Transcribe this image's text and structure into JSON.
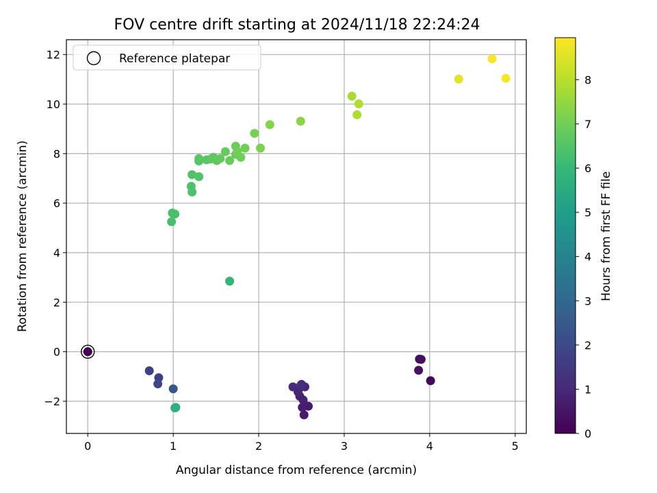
{
  "chart_data": {
    "type": "scatter",
    "title": "FOV centre drift starting at 2024/11/18 22:24:24",
    "xlabel": "Angular distance from reference (arcmin)",
    "ylabel": "Rotation from reference (arcmin)",
    "xlim": [
      -0.25,
      5.13
    ],
    "ylim": [
      -3.3,
      12.6
    ],
    "xticks": [
      0,
      1,
      2,
      3,
      4,
      5
    ],
    "yticks": [
      -2,
      0,
      2,
      4,
      6,
      8,
      10,
      12
    ],
    "grid": true,
    "legend": {
      "placement": "top-left",
      "entries": [
        "Reference platepar"
      ]
    },
    "reference_point": {
      "x": 0,
      "y": 0
    },
    "colorbar": {
      "label": "Hours from first FF file",
      "colormap": "viridis",
      "range": [
        0,
        8.95
      ],
      "ticks": [
        0,
        1,
        2,
        3,
        4,
        5,
        6,
        7,
        8
      ]
    },
    "series": [
      {
        "points": [
          {
            "x": 0.0,
            "y": 0.0,
            "c": 0.0
          },
          {
            "x": 4.01,
            "y": -1.17,
            "c": 0.15
          },
          {
            "x": 3.88,
            "y": -0.3,
            "c": 0.3
          },
          {
            "x": 3.9,
            "y": -0.31,
            "c": 0.35
          },
          {
            "x": 3.87,
            "y": -0.75,
            "c": 0.4
          },
          {
            "x": 2.53,
            "y": -2.55,
            "c": 0.6
          },
          {
            "x": 2.58,
            "y": -2.2,
            "c": 0.7
          },
          {
            "x": 2.51,
            "y": -2.25,
            "c": 0.75
          },
          {
            "x": 2.52,
            "y": -1.95,
            "c": 0.8
          },
          {
            "x": 2.48,
            "y": -1.8,
            "c": 0.85
          },
          {
            "x": 2.46,
            "y": -1.62,
            "c": 0.9
          },
          {
            "x": 2.47,
            "y": -1.5,
            "c": 0.95
          },
          {
            "x": 2.54,
            "y": -1.42,
            "c": 1.0
          },
          {
            "x": 2.5,
            "y": -1.32,
            "c": 1.05
          },
          {
            "x": 2.4,
            "y": -1.42,
            "c": 1.1
          },
          {
            "x": 2.49,
            "y": -1.37,
            "c": 1.2
          },
          {
            "x": 0.83,
            "y": -1.05,
            "c": 1.7
          },
          {
            "x": 0.72,
            "y": -0.77,
            "c": 1.75
          },
          {
            "x": 0.82,
            "y": -1.3,
            "c": 1.9
          },
          {
            "x": 1.0,
            "y": -1.5,
            "c": 2.4
          },
          {
            "x": 1.02,
            "y": -2.27,
            "c": 5.6
          },
          {
            "x": 1.03,
            "y": -2.25,
            "c": 5.7
          },
          {
            "x": 1.66,
            "y": 2.85,
            "c": 5.9
          },
          {
            "x": 0.98,
            "y": 5.25,
            "c": 6.3
          },
          {
            "x": 0.99,
            "y": 5.6,
            "c": 6.3
          },
          {
            "x": 1.02,
            "y": 5.56,
            "c": 6.35
          },
          {
            "x": 1.22,
            "y": 6.45,
            "c": 6.4
          },
          {
            "x": 1.21,
            "y": 6.68,
            "c": 6.4
          },
          {
            "x": 1.22,
            "y": 7.15,
            "c": 6.45
          },
          {
            "x": 1.3,
            "y": 7.07,
            "c": 6.5
          },
          {
            "x": 1.3,
            "y": 7.7,
            "c": 6.55
          },
          {
            "x": 1.3,
            "y": 7.8,
            "c": 6.6
          },
          {
            "x": 1.39,
            "y": 7.75,
            "c": 6.6
          },
          {
            "x": 1.44,
            "y": 7.78,
            "c": 6.65
          },
          {
            "x": 1.47,
            "y": 7.85,
            "c": 6.7
          },
          {
            "x": 1.51,
            "y": 7.72,
            "c": 6.7
          },
          {
            "x": 1.55,
            "y": 7.8,
            "c": 6.75
          },
          {
            "x": 1.61,
            "y": 8.08,
            "c": 6.8
          },
          {
            "x": 1.66,
            "y": 7.72,
            "c": 6.85
          },
          {
            "x": 1.73,
            "y": 8.3,
            "c": 6.9
          },
          {
            "x": 1.73,
            "y": 7.97,
            "c": 6.9
          },
          {
            "x": 1.79,
            "y": 7.85,
            "c": 6.95
          },
          {
            "x": 1.84,
            "y": 8.22,
            "c": 7.0
          },
          {
            "x": 1.75,
            "y": 8.08,
            "c": 7.0
          },
          {
            "x": 1.95,
            "y": 8.82,
            "c": 7.1
          },
          {
            "x": 2.02,
            "y": 8.22,
            "c": 7.15
          },
          {
            "x": 2.13,
            "y": 9.17,
            "c": 7.25
          },
          {
            "x": 2.49,
            "y": 9.31,
            "c": 7.35
          },
          {
            "x": 3.09,
            "y": 10.32,
            "c": 7.8
          },
          {
            "x": 3.17,
            "y": 10.01,
            "c": 7.9
          },
          {
            "x": 3.15,
            "y": 9.57,
            "c": 7.85
          },
          {
            "x": 4.34,
            "y": 11.01,
            "c": 8.6
          },
          {
            "x": 4.73,
            "y": 11.83,
            "c": 8.85
          },
          {
            "x": 4.89,
            "y": 11.04,
            "c": 8.9
          }
        ]
      }
    ]
  }
}
